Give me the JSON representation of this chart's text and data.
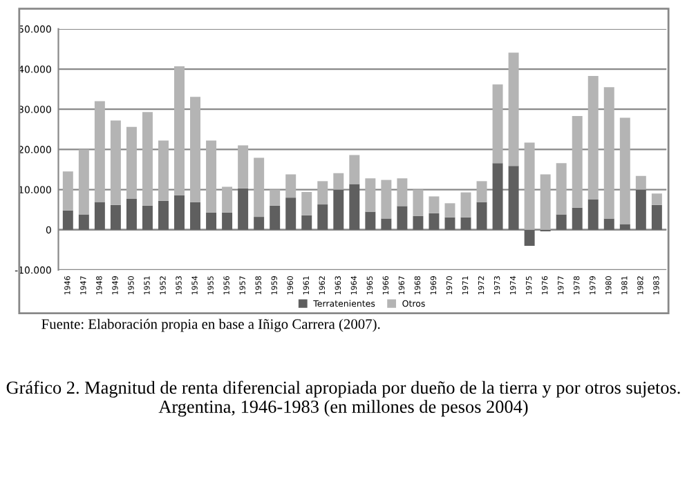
{
  "chart_data": {
    "type": "bar",
    "stacked": true,
    "title": "Gráfico 2. Magnitud de renta diferencial apropiada por dueño de la tierra y por otros sujetos. Argentina, 1946-1983 (en millones de pesos 2004)",
    "annotations": [
      "Fuente: Elaboración propia en base a Iñigo Carrera (2007)."
    ],
    "categories": [
      "1946",
      "1947",
      "1948",
      "1949",
      "1950",
      "1951",
      "1952",
      "1953",
      "1954",
      "1955",
      "1956",
      "1957",
      "1958",
      "1959",
      "1960",
      "1961",
      "1962",
      "1963",
      "1964",
      "1965",
      "1966",
      "1967",
      "1968",
      "1969",
      "1970",
      "1971",
      "1972",
      "1973",
      "1974",
      "1975",
      "1976",
      "1977",
      "1978",
      "1979",
      "1980",
      "1981",
      "1982",
      "1983"
    ],
    "series": [
      {
        "name": "Terratenientes",
        "color": "#5f5f5f",
        "values": [
          4800,
          3800,
          6900,
          6200,
          7700,
          6000,
          7200,
          8600,
          6900,
          4300,
          4300,
          10300,
          3200,
          6000,
          8000,
          3600,
          6300,
          10000,
          11400,
          4500,
          2800,
          5900,
          3400,
          4100,
          3100,
          3100,
          6900,
          16600,
          15900,
          -4000,
          -400,
          3800,
          5500,
          7600,
          2800,
          1400,
          10000,
          6200
        ]
      },
      {
        "name": "Otros",
        "color": "#b4b4b4",
        "values": [
          9700,
          16200,
          25100,
          21000,
          17900,
          23300,
          15000,
          32100,
          26200,
          17900,
          6400,
          10700,
          14700,
          4000,
          5800,
          5800,
          5800,
          4100,
          7200,
          8300,
          9600,
          6900,
          6600,
          4200,
          3500,
          6200,
          5200,
          19600,
          28200,
          21700,
          13800,
          12800,
          22800,
          30700,
          32700,
          26500,
          3400,
          2800
        ]
      }
    ],
    "ylim": [
      -10000,
      50000
    ],
    "yticks": [
      {
        "value": -10000,
        "label": "-10.000"
      },
      0,
      {
        "value": 10000,
        "label": "10.000"
      },
      {
        "value": 20000,
        "label": "20.000"
      },
      {
        "value": 30000,
        "label": "30.000"
      },
      {
        "value": 40000,
        "label": "40.000"
      },
      {
        "value": 50000,
        "label": "50.000"
      }
    ],
    "grid": "y",
    "legend": "bottom"
  }
}
